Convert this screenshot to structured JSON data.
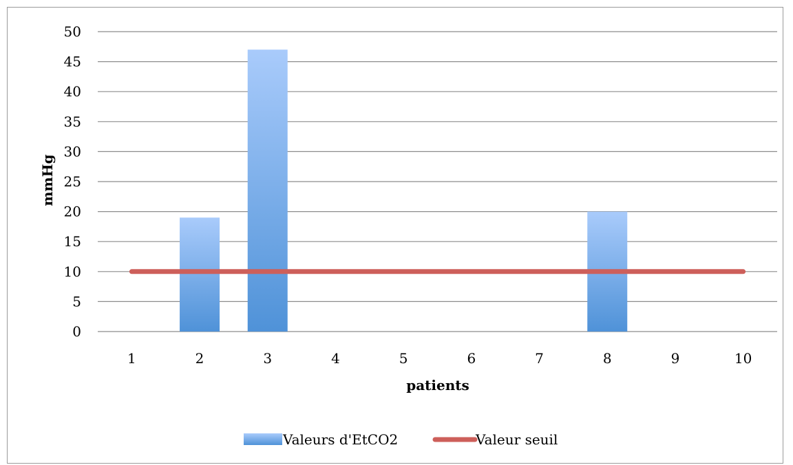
{
  "chart_data": {
    "type": "bar",
    "categories": [
      "1",
      "2",
      "3",
      "4",
      "5",
      "6",
      "7",
      "8",
      "9",
      "10"
    ],
    "series": [
      {
        "name": "Valeurs d'EtCO2",
        "type": "bar",
        "values": [
          0,
          19,
          47,
          0,
          0,
          0,
          0,
          20,
          0,
          0
        ],
        "color_top": "#a9cbfb",
        "color_bottom": "#4f92d8"
      },
      {
        "name": "Valeur seuil",
        "type": "line",
        "values": [
          10,
          10,
          10,
          10,
          10,
          10,
          10,
          10,
          10,
          10
        ],
        "color": "#cd5f5a"
      }
    ],
    "xlabel": "patients",
    "ylabel": "mmHg",
    "ylim": [
      0,
      50
    ],
    "yticks": [
      0,
      5,
      10,
      15,
      20,
      25,
      30,
      35,
      40,
      45,
      50
    ],
    "grid": true,
    "legend": "bottom"
  }
}
